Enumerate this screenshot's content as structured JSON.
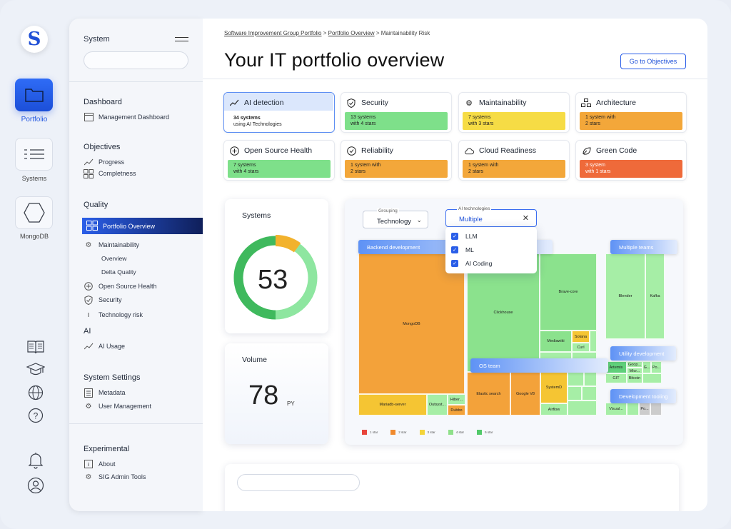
{
  "rail": {
    "logo": "S",
    "items": [
      {
        "label": "Portfolio",
        "icon": "folder-icon"
      },
      {
        "label": "Systems",
        "icon": "list-icon"
      },
      {
        "label": "MongoDB",
        "icon": "hexagon-icon"
      }
    ],
    "bottom_icons": [
      "book-icon",
      "graduation-cap-icon",
      "globe-icon",
      "help-icon",
      "bell-icon",
      "user-icon"
    ]
  },
  "sidebar": {
    "title": "System",
    "sections": {
      "dashboard": {
        "title": "Dashboard",
        "items": [
          "Management Dashboard"
        ]
      },
      "objectives": {
        "title": "Objectives",
        "items": [
          "Progress",
          "Completness"
        ]
      },
      "quality": {
        "title": "Quality",
        "active": "Portfolio Overview",
        "maintainability": "Maintainability",
        "overview": "Overview",
        "delta": "Delta Quality",
        "open_source": "Open Source Health",
        "security": "Security",
        "tech_risk": "Technology risk"
      },
      "ai": {
        "title": "AI",
        "items": [
          "AI Usage"
        ]
      },
      "settings": {
        "title": "System Settings",
        "items": [
          "Metadata",
          "User Management"
        ]
      },
      "experimental": {
        "title": "Experimental",
        "items": [
          "About",
          "SIG Admin Tools"
        ]
      }
    }
  },
  "header": {
    "breadcrumb": [
      "Software Improvement Group Portfolio",
      "Portfolio Overview",
      "Maintainability Risk"
    ],
    "breadcrumb_sep": ">",
    "title": "Your IT portfolio overview",
    "objectives_button": "Go to Objectives"
  },
  "cards": [
    {
      "title": "AI detection",
      "line1": "34 systems",
      "line2": "using AI Technologies",
      "color": "#ffffff"
    },
    {
      "title": "Security",
      "line1": "13 systems",
      "line2": "with 4 stars",
      "color": "#7ee08a"
    },
    {
      "title": "Maintainability",
      "line1": "7 systems",
      "line2": "with 3 stars",
      "color": "#f6dc45"
    },
    {
      "title": "Architecture",
      "line1": "1 system with",
      "line2": "2 stars",
      "color": "#f3a73a"
    },
    {
      "title": "Open Source Health",
      "line1": "7 systems",
      "line2": "with 4 stars",
      "color": "#7ee08a"
    },
    {
      "title": "Reliability",
      "line1": "1 system with",
      "line2": "2 stars",
      "color": "#f3a73a"
    },
    {
      "title": "Cloud Readiness",
      "line1": "1 system with",
      "line2": "2 stars",
      "color": "#f3a73a"
    },
    {
      "title": "Green Code",
      "line1": "3 system",
      "line2": "with 1 stars",
      "color": "#ef6a3a"
    }
  ],
  "systems_panel": {
    "title": "Systems",
    "value": "53",
    "gauge_fraction_orange": 0.1
  },
  "volume_panel": {
    "title": "Volume",
    "value": "78",
    "unit": "PY"
  },
  "treemap": {
    "grouping_label": "Grouping",
    "grouping_value": "Technology",
    "filter_label": "AI technologies",
    "filter_value": "Multiple",
    "options": [
      "LLM",
      "ML",
      "AI Coding"
    ],
    "groups": [
      "Backend development",
      "Multiple teams",
      "Utility development",
      "OS team",
      "Development tooling"
    ],
    "cells": [
      "MongoDB",
      "Mariadb-server",
      "Outsyst...",
      "Hiber...",
      "Dubbo",
      "Clickhouse",
      "Brave-core",
      "Mediawiki",
      "Solana",
      "Curl",
      "Elastic search",
      "Google V8",
      "SystemD",
      "Airflow",
      "Blender",
      "Kafka",
      "Artemis",
      "Goop...",
      "Micr...",
      "GIT",
      "Bitcoin",
      "Visual...",
      "G...",
      "Po...",
      "Po..."
    ],
    "legend": [
      "1 star",
      "2 star",
      "3 star",
      "4 star",
      "5 star"
    ],
    "legend_colors": [
      "#e8453c",
      "#f08a2e",
      "#f4d43a",
      "#8fe08a",
      "#52c96a"
    ]
  }
}
